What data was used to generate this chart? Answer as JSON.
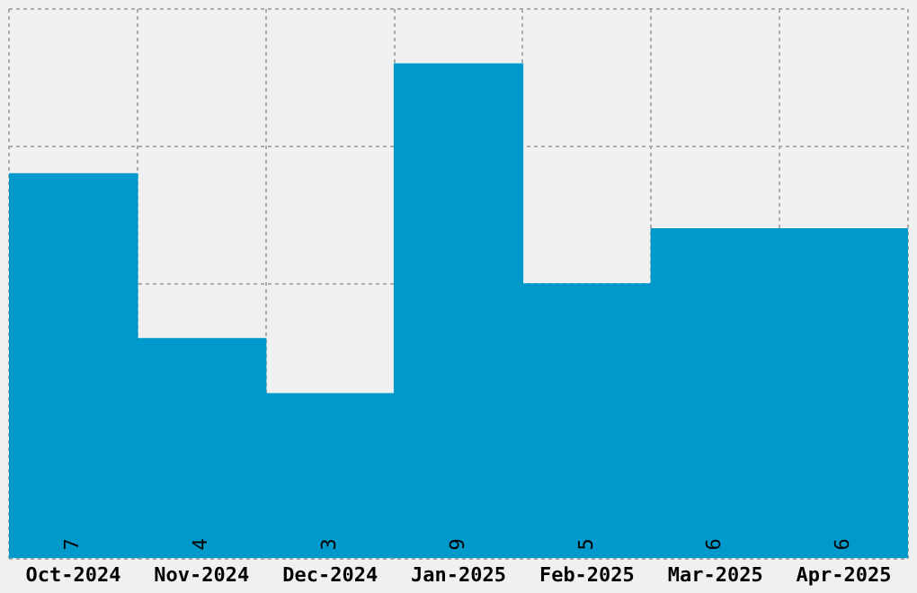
{
  "chart_data": {
    "type": "bar",
    "categories": [
      "Oct-2024",
      "Nov-2024",
      "Dec-2024",
      "Jan-2025",
      "Feb-2025",
      "Mar-2025",
      "Apr-2025"
    ],
    "values": [
      7,
      4,
      3,
      9,
      5,
      6,
      6
    ],
    "color": "#0099cc",
    "data_labels": true,
    "ylim": [
      0,
      10
    ],
    "grid": true,
    "tick_labels": "x"
  }
}
